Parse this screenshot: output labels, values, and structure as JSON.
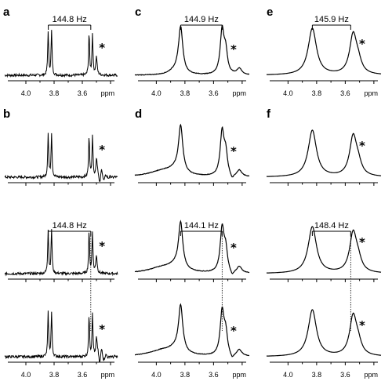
{
  "chart_data": {
    "type": "line",
    "x_unit": "ppm",
    "x_range_ppm": [
      4.15,
      3.35
    ],
    "x_ticks": [
      "4.0",
      "3.8",
      "3.6"
    ],
    "columns": [
      {
        "id": "a",
        "linewidth_ppm": 0.004,
        "spectra": [
          {
            "label": "a",
            "j_hz": "144.8 Hz",
            "star": "*"
          },
          {
            "label": "b",
            "j_hz": "",
            "star": "*"
          },
          {
            "label": "",
            "j_hz": "144.8 Hz",
            "star": "*"
          },
          {
            "label": "",
            "j_hz": "",
            "star": "*"
          }
        ]
      },
      {
        "id": "c",
        "linewidth_ppm": 0.018,
        "spectra": [
          {
            "label": "c",
            "j_hz": "144.9 Hz",
            "star": "*"
          },
          {
            "label": "d",
            "j_hz": "",
            "star": "*"
          },
          {
            "label": "",
            "j_hz": "144.1 Hz",
            "star": "*"
          },
          {
            "label": "",
            "j_hz": "",
            "star": "*"
          }
        ]
      },
      {
        "id": "e",
        "linewidth_ppm": 0.035,
        "spectra": [
          {
            "label": "e",
            "j_hz": "145.9 Hz",
            "star": "*"
          },
          {
            "label": "f",
            "j_hz": "",
            "star": "*"
          },
          {
            "label": "",
            "j_hz": "148.4 Hz",
            "star": "*"
          },
          {
            "label": "",
            "j_hz": "",
            "star": "*"
          }
        ]
      }
    ],
    "peaks_ppm": [
      3.83,
      3.54
    ],
    "asterisk_peak_ppm": 3.5,
    "xlabel": "ppm"
  }
}
